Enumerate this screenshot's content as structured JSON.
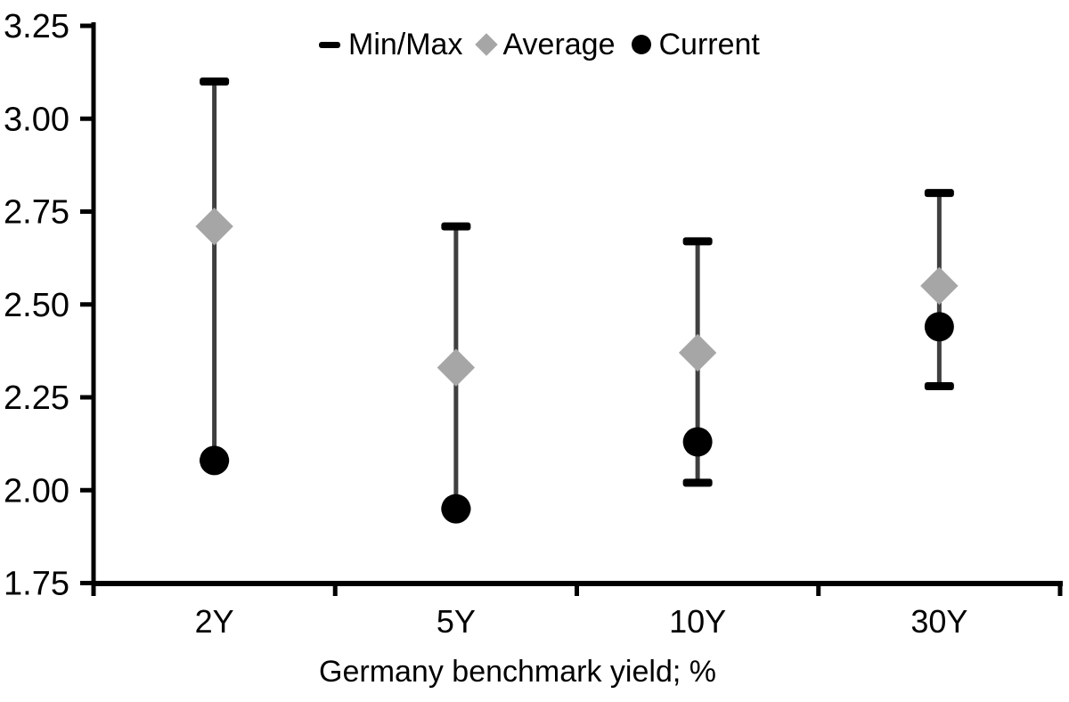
{
  "chart_data": {
    "type": "scatter",
    "subtype": "min-max-range-with-markers",
    "categories": [
      "2Y",
      "5Y",
      "10Y",
      "30Y"
    ],
    "series": [
      {
        "name": "Min/Max",
        "min": [
          2.08,
          1.95,
          2.02,
          2.28
        ],
        "max": [
          3.1,
          2.71,
          2.67,
          2.8
        ]
      },
      {
        "name": "Average",
        "values": [
          2.71,
          2.33,
          2.37,
          2.55
        ]
      },
      {
        "name": "Current",
        "values": [
          2.08,
          1.95,
          2.13,
          2.44
        ]
      }
    ],
    "title": "",
    "xlabel": "Germany benchmark yield; %",
    "ylabel": "",
    "ylim": [
      1.75,
      3.25
    ],
    "ytick_step": 0.25,
    "ytick_labels": [
      "1.75",
      "2.00",
      "2.25",
      "2.50",
      "2.75",
      "3.00",
      "3.25"
    ],
    "grid": false,
    "legend": {
      "position": "top-center",
      "items": [
        {
          "label": "Min/Max",
          "marker": "dash",
          "color": "#000000"
        },
        {
          "label": "Average",
          "marker": "diamond",
          "color": "#a6a6a6"
        },
        {
          "label": "Current",
          "marker": "circle",
          "color": "#000000"
        }
      ]
    },
    "colors": {
      "range_line": "#3f3f3f",
      "cap": "#000000",
      "average": "#a6a6a6",
      "current": "#000000",
      "axis": "#000000",
      "text": "#000000",
      "background": "#ffffff"
    }
  }
}
